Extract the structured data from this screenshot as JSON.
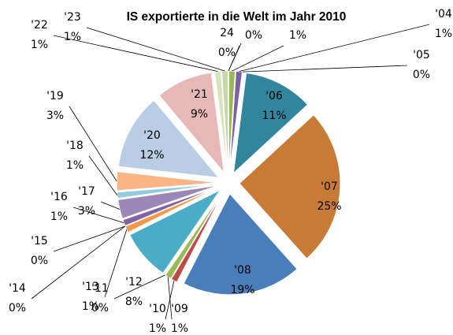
{
  "chart_data": {
    "type": "pie",
    "title": "IS exportierte in die Welt im Jahr 2010",
    "categories": [
      null,
      null,
      "'04",
      "'05",
      "'06",
      "'07",
      "'08",
      "'09",
      "'10",
      "'11",
      "'12",
      "'13",
      "'14",
      "'15",
      "'16",
      "'17",
      "'18",
      "'19",
      "'20",
      "'21",
      "'22",
      "'23",
      "24"
    ],
    "values": [
      0,
      1,
      1,
      0,
      11,
      25,
      19,
      1,
      1,
      0,
      8,
      1,
      0,
      0,
      1,
      3,
      1,
      3,
      12,
      9,
      1,
      1,
      0
    ],
    "value_labels": [
      "0%",
      "1%",
      "1%",
      "0%",
      "11%",
      "25%",
      "19%",
      "1%",
      "1%",
      "0%",
      "8%",
      "1%",
      "0%",
      "0%",
      "1%",
      "3%",
      "1%",
      "3%",
      "12%",
      "9%",
      "1%",
      "1%",
      "0%"
    ],
    "colors": [
      "#be4b48",
      "#98b954",
      "#7d60a0",
      "#46aac5",
      "#31859c",
      "#c87b37",
      "#4a7ebb",
      "#be4b48",
      "#98b954",
      "#7d60a0",
      "#4bacc6",
      "#f79646",
      "#4f81bd",
      "#c0504d",
      "#8064a2",
      "#9b86b8",
      "#93cddd",
      "#fab485",
      "#b9cde5",
      "#e6b9b8",
      "#d7e4bd",
      "#c4d8a8",
      "#ccc1da"
    ]
  }
}
